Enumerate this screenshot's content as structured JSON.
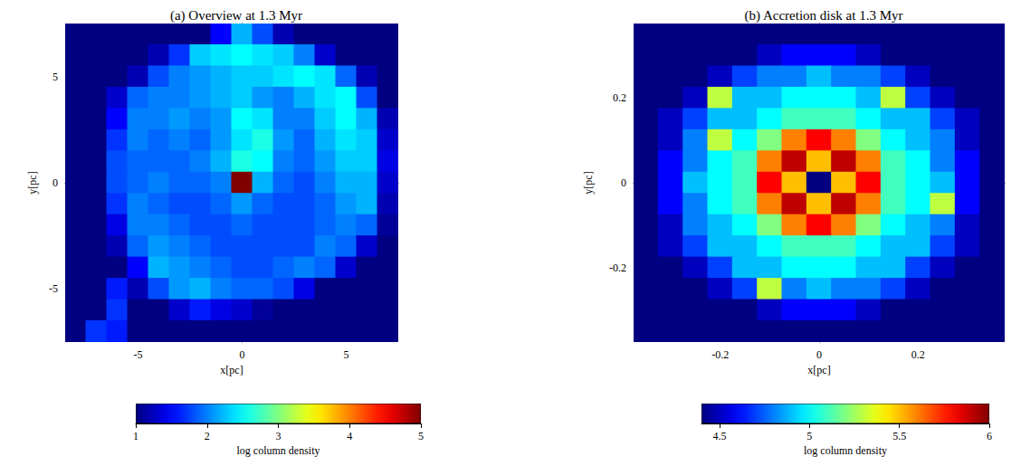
{
  "chart_data": [
    {
      "type": "heatmap",
      "title": "(a) Overview at 1.3 Myr",
      "x_label": "x[pc]",
      "y_label": "y[pc]",
      "xlim": [
        -8.5,
        7.5
      ],
      "ylim": [
        -7.5,
        7.5
      ],
      "xticks": [
        -5,
        0,
        5
      ],
      "yticks": [
        -5,
        0,
        5
      ],
      "grid": false,
      "x": [
        -8,
        -7,
        -6,
        -5,
        -4,
        -3,
        -2,
        -1,
        0,
        1,
        2,
        3,
        4,
        5,
        6,
        7
      ],
      "y": [
        7,
        6,
        5,
        4,
        3,
        2,
        1,
        0,
        -1,
        -2,
        -3,
        -4,
        -5,
        -6,
        -7
      ],
      "cells": [
        [
          1,
          1,
          1,
          1,
          1,
          1,
          1,
          1.5,
          2.2,
          1.8,
          1.2,
          1,
          1,
          1,
          1,
          1
        ],
        [
          1,
          1,
          1,
          1,
          1.2,
          1.7,
          2.3,
          2.4,
          2.5,
          2.4,
          2.3,
          2.0,
          1.3,
          1,
          1,
          1
        ],
        [
          1,
          1,
          1,
          1.2,
          1.8,
          2.0,
          2.1,
          2.2,
          2.3,
          2.3,
          2.4,
          2.5,
          2.4,
          1.9,
          1.2,
          1
        ],
        [
          1,
          1,
          1.3,
          1.9,
          2.0,
          2.0,
          2.1,
          2.2,
          2.3,
          2.1,
          2.0,
          2.2,
          2.4,
          2.5,
          1.8,
          1
        ],
        [
          1,
          1,
          1.5,
          2.0,
          2.0,
          2.1,
          2.0,
          2.1,
          2.5,
          2.4,
          2.0,
          2.0,
          2.3,
          2.5,
          2.2,
          1.2
        ],
        [
          1,
          1,
          1.7,
          2.0,
          1.9,
          2.0,
          1.9,
          2.1,
          2.4,
          2.6,
          2.1,
          1.9,
          2.2,
          2.4,
          2.3,
          1.3
        ],
        [
          1,
          1,
          1.8,
          1.9,
          1.9,
          1.9,
          2.0,
          2.2,
          2.6,
          2.5,
          2.0,
          1.9,
          2.1,
          2.3,
          2.3,
          1.4
        ],
        [
          1,
          1,
          1.8,
          1.9,
          2.0,
          1.9,
          1.9,
          2.0,
          5.0,
          2.2,
          1.9,
          1.8,
          2.0,
          2.2,
          2.2,
          1.3
        ],
        [
          1,
          1,
          1.7,
          2.0,
          1.9,
          1.8,
          1.8,
          1.9,
          2.1,
          1.9,
          1.8,
          1.8,
          1.9,
          2.1,
          2.2,
          1.2
        ],
        [
          1,
          1,
          1.4,
          2.0,
          2.0,
          1.9,
          1.8,
          1.8,
          1.9,
          1.8,
          1.8,
          1.8,
          1.9,
          2.0,
          1.9,
          1.1
        ],
        [
          1,
          1,
          1.2,
          1.9,
          2.1,
          2.0,
          1.9,
          1.8,
          1.8,
          1.8,
          1.8,
          1.8,
          2.0,
          1.9,
          1.3,
          1
        ],
        [
          1,
          1,
          1,
          1.5,
          2.2,
          2.1,
          2.0,
          1.9,
          1.8,
          1.8,
          1.9,
          2.0,
          1.9,
          1.3,
          1,
          1
        ],
        [
          1,
          1,
          1.6,
          1.2,
          1.8,
          2.1,
          2.2,
          2.0,
          1.9,
          1.9,
          1.8,
          1.4,
          1,
          1,
          1,
          1
        ],
        [
          1,
          1,
          1.7,
          1,
          1,
          1.3,
          1.6,
          1.4,
          1.3,
          1.1,
          1,
          1,
          1,
          1,
          1,
          1
        ],
        [
          1,
          1.7,
          1.6,
          1,
          1,
          1,
          1,
          1,
          1,
          1,
          1,
          1,
          1,
          1,
          1,
          1
        ]
      ],
      "colorbar_range": [
        1,
        5
      ],
      "colorbar_ticks": [
        1,
        2,
        3,
        4,
        5
      ],
      "colorbar_label": "log column density"
    },
    {
      "type": "heatmap",
      "title": "(b) Accretion disk at 1.3 Myr",
      "x_label": "x[pc]",
      "y_label": "y[pc]",
      "xlim": [
        -0.375,
        0.375
      ],
      "ylim": [
        -0.375,
        0.375
      ],
      "xticks": [
        -0.2,
        0,
        0.2
      ],
      "yticks": [
        -0.2,
        0,
        0.2
      ],
      "grid": false,
      "x": [
        -0.35,
        -0.3,
        -0.25,
        -0.2,
        -0.15,
        -0.1,
        -0.05,
        0,
        0.05,
        0.1,
        0.15,
        0.2,
        0.25,
        0.3,
        0.35
      ],
      "y": [
        0.35,
        0.3,
        0.25,
        0.2,
        0.15,
        0.1,
        0.05,
        0,
        -0.05,
        -0.1,
        -0.15,
        -0.2,
        -0.25,
        -0.3,
        -0.35
      ],
      "cells": [
        [
          4.4,
          4.4,
          4.4,
          4.4,
          4.4,
          4.4,
          4.4,
          4.4,
          4.4,
          4.4,
          4.4,
          4.4,
          4.4,
          4.4,
          4.4
        ],
        [
          4.4,
          4.4,
          4.4,
          4.4,
          4.4,
          4.5,
          4.6,
          4.6,
          4.6,
          4.5,
          4.4,
          4.4,
          4.4,
          4.4,
          4.4
        ],
        [
          4.4,
          4.4,
          4.4,
          4.5,
          4.7,
          4.8,
          4.8,
          4.9,
          4.8,
          4.8,
          4.7,
          4.5,
          4.4,
          4.4,
          4.4
        ],
        [
          4.4,
          4.4,
          4.5,
          5.3,
          4.9,
          4.9,
          5.0,
          5.0,
          5.0,
          4.9,
          5.3,
          4.7,
          4.5,
          4.4,
          4.4
        ],
        [
          4.4,
          4.5,
          4.7,
          4.9,
          4.9,
          5.0,
          5.1,
          5.1,
          5.1,
          5.0,
          4.9,
          4.9,
          4.7,
          4.5,
          4.4
        ],
        [
          4.4,
          4.5,
          4.8,
          5.3,
          5.0,
          5.2,
          5.6,
          5.8,
          5.6,
          5.2,
          5.0,
          4.9,
          4.8,
          4.5,
          4.4
        ],
        [
          4.4,
          4.6,
          4.8,
          5.0,
          5.1,
          5.6,
          5.9,
          5.5,
          5.9,
          5.6,
          5.1,
          5.0,
          4.8,
          4.6,
          4.4
        ],
        [
          4.4,
          4.6,
          4.9,
          5.0,
          5.1,
          5.8,
          5.5,
          4.4,
          5.5,
          5.8,
          5.1,
          5.0,
          4.9,
          4.6,
          4.4
        ],
        [
          4.4,
          4.6,
          4.8,
          5.0,
          5.1,
          5.6,
          5.9,
          5.5,
          5.9,
          5.6,
          5.1,
          5.0,
          5.3,
          4.6,
          4.4
        ],
        [
          4.4,
          4.5,
          4.8,
          4.9,
          5.0,
          5.2,
          5.6,
          5.8,
          5.6,
          5.2,
          5.0,
          4.9,
          4.8,
          4.5,
          4.4
        ],
        [
          4.4,
          4.5,
          4.7,
          4.9,
          4.9,
          5.0,
          5.1,
          5.1,
          5.1,
          5.0,
          4.9,
          4.9,
          4.7,
          4.5,
          4.4
        ],
        [
          4.4,
          4.4,
          4.5,
          4.7,
          4.9,
          4.9,
          5.0,
          5.0,
          5.0,
          4.9,
          4.9,
          4.7,
          4.5,
          4.4,
          4.4
        ],
        [
          4.4,
          4.4,
          4.4,
          4.5,
          4.7,
          5.3,
          4.8,
          4.9,
          4.8,
          4.8,
          4.7,
          4.5,
          4.4,
          4.4,
          4.4
        ],
        [
          4.4,
          4.4,
          4.4,
          4.4,
          4.4,
          4.5,
          4.6,
          4.6,
          4.6,
          4.5,
          4.4,
          4.4,
          4.4,
          4.4,
          4.4
        ],
        [
          4.4,
          4.4,
          4.4,
          4.4,
          4.4,
          4.4,
          4.4,
          4.4,
          4.4,
          4.4,
          4.4,
          4.4,
          4.4,
          4.4,
          4.4
        ]
      ],
      "colorbar_range": [
        4.4,
        6
      ],
      "colorbar_ticks": [
        4.5,
        5,
        5.5,
        6
      ],
      "colorbar_label": "log column density"
    }
  ]
}
